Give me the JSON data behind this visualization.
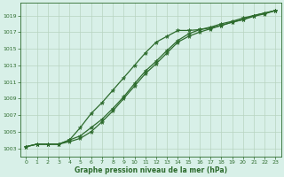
{
  "xlabel": "Graphe pression niveau de la mer (hPa)",
  "ylabel": "",
  "background_color": "#d8f0e8",
  "grid_color": "#b8d4c0",
  "line_color": "#2d6b2d",
  "xlim": [
    -0.5,
    23.5
  ],
  "ylim": [
    1002.0,
    1020.5
  ],
  "xticks": [
    0,
    1,
    2,
    3,
    4,
    5,
    6,
    7,
    8,
    9,
    10,
    11,
    12,
    13,
    14,
    15,
    16,
    17,
    18,
    19,
    20,
    21,
    22,
    23
  ],
  "yticks": [
    1003,
    1005,
    1007,
    1009,
    1011,
    1013,
    1015,
    1017,
    1019
  ],
  "line1_x": [
    0,
    1,
    2,
    3,
    4,
    5,
    6,
    7,
    8,
    9,
    10,
    11,
    12,
    13,
    14,
    15,
    16,
    17,
    18,
    19,
    20,
    21,
    22,
    23
  ],
  "line1_y": [
    1003.2,
    1003.5,
    1003.5,
    1003.5,
    1004.0,
    1005.5,
    1007.2,
    1008.5,
    1010.0,
    1011.5,
    1013.0,
    1014.5,
    1015.8,
    1016.5,
    1017.2,
    1017.2,
    1017.3,
    1017.5,
    1017.8,
    1018.2,
    1018.5,
    1019.0,
    1019.3,
    1019.6
  ],
  "line2_x": [
    0,
    1,
    2,
    3,
    4,
    5,
    6,
    7,
    8,
    9,
    10,
    11,
    12,
    13,
    14,
    15,
    16,
    17,
    18,
    19,
    20,
    21,
    22,
    23
  ],
  "line2_y": [
    1003.2,
    1003.5,
    1003.5,
    1003.5,
    1004.0,
    1004.5,
    1005.5,
    1006.5,
    1007.8,
    1009.2,
    1010.8,
    1012.3,
    1013.5,
    1014.8,
    1016.0,
    1016.8,
    1017.3,
    1017.6,
    1018.0,
    1018.3,
    1018.7,
    1019.0,
    1019.3,
    1019.6
  ],
  "line3_x": [
    0,
    1,
    2,
    3,
    4,
    5,
    6,
    7,
    8,
    9,
    10,
    11,
    12,
    13,
    14,
    15,
    16,
    17,
    18,
    19,
    20,
    21,
    22,
    23
  ],
  "line3_y": [
    1003.2,
    1003.5,
    1003.5,
    1003.5,
    1003.8,
    1004.2,
    1005.0,
    1006.2,
    1007.5,
    1009.0,
    1010.5,
    1012.0,
    1013.2,
    1014.5,
    1015.8,
    1016.5,
    1017.0,
    1017.4,
    1017.8,
    1018.2,
    1018.5,
    1018.9,
    1019.2,
    1019.6
  ]
}
